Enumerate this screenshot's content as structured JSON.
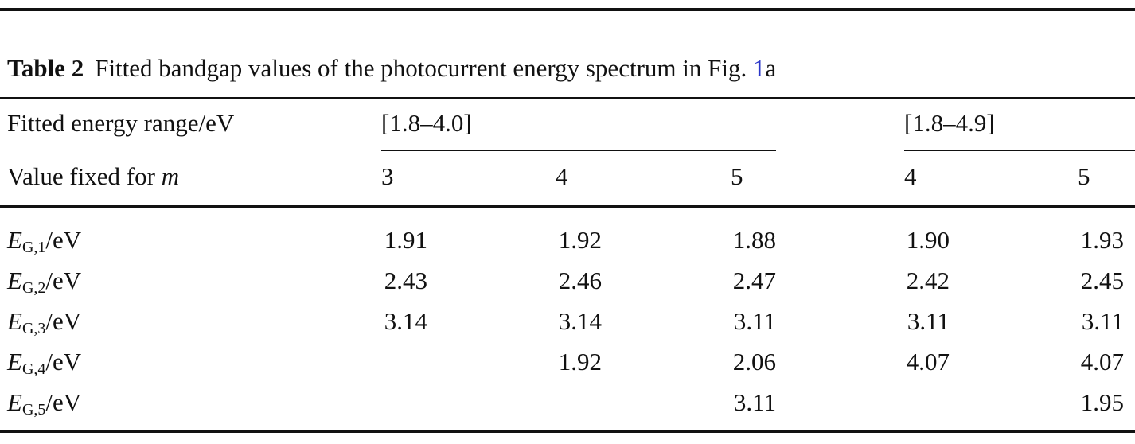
{
  "caption": {
    "label": "Table 2",
    "text": "Fitted bandgap values of the photocurrent energy spectrum in Fig.",
    "fig_ref": "1",
    "fig_panel": "a"
  },
  "header": {
    "row1_label": "Fitted energy range/eV",
    "group1": "[1.8–4.0]",
    "group2": "[1.8–4.9]",
    "row2_label_prefix": "Value fixed for",
    "row2_label_var": "m",
    "m_values": [
      "3",
      "4",
      "5",
      "4",
      "5"
    ]
  },
  "rows": [
    {
      "sym": "E",
      "sub": "G,1",
      "unit": "/eV",
      "values": [
        "1.91",
        "1.92",
        "1.88",
        "1.90",
        "1.93"
      ]
    },
    {
      "sym": "E",
      "sub": "G,2",
      "unit": "/eV",
      "values": [
        "2.43",
        "2.46",
        "2.47",
        "2.42",
        "2.45"
      ]
    },
    {
      "sym": "E",
      "sub": "G,3",
      "unit": "/eV",
      "values": [
        "3.14",
        "3.14",
        "3.11",
        "3.11",
        "3.11"
      ]
    },
    {
      "sym": "E",
      "sub": "G,4",
      "unit": "/eV",
      "values": [
        "",
        "1.92",
        "2.06",
        "4.07",
        "4.07"
      ]
    },
    {
      "sym": "E",
      "sub": "G,5",
      "unit": "/eV",
      "values": [
        "",
        "",
        "3.11",
        "",
        "1.95"
      ]
    }
  ]
}
